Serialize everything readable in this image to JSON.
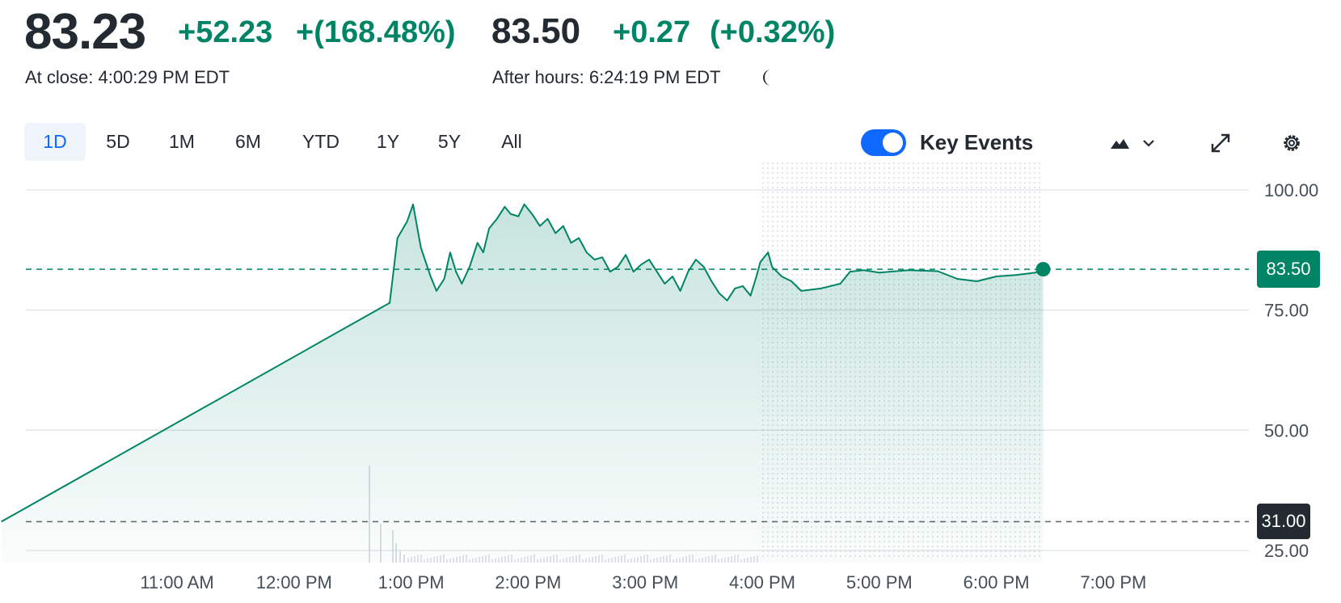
{
  "quote": {
    "price": "83.23",
    "change": "+52.23",
    "change_pct": "+(168.48%)",
    "close_label": "At close: 4:00:29 PM EDT",
    "ah_price": "83.50",
    "ah_change": "+0.27",
    "ah_change_pct": "(+0.32%)",
    "ah_label": "After hours: 6:24:19 PM EDT"
  },
  "ranges": [
    "1D",
    "5D",
    "1M",
    "6M",
    "YTD",
    "1Y",
    "5Y",
    "All"
  ],
  "active_range": "1D",
  "controls": {
    "key_events_label": "Key Events",
    "key_events_on": true,
    "icons": [
      "moon-icon",
      "mountain-chart-icon",
      "chevron-down-icon",
      "expand-icon",
      "gear-icon"
    ]
  },
  "colors": {
    "up": "#008466",
    "accent": "#0f69ff",
    "prev_close_tag": "#232a31"
  },
  "chart_data": {
    "type": "area",
    "xlabel": "",
    "ylabel": "",
    "x_ticks": [
      "11:00 AM",
      "12:00 PM",
      "1:00 PM",
      "2:00 PM",
      "3:00 PM",
      "4:00 PM",
      "5:00 PM",
      "6:00 PM",
      "7:00 PM"
    ],
    "y_ticks": [
      "25.00",
      "50.00",
      "75.00",
      "100.00"
    ],
    "ylim": [
      23,
      102
    ],
    "grid": true,
    "after_hours_start": "4:00 PM",
    "previous_close": {
      "value": 31.0,
      "label": "31.00"
    },
    "current": {
      "value": 83.5,
      "label": "83.50"
    },
    "series": [
      {
        "points": [
          [
            "9:30 AM",
            31.0
          ],
          [
            "12:49 PM",
            76.5
          ],
          [
            "12:53 PM",
            90.0
          ],
          [
            "12:58 PM",
            93.5
          ],
          [
            "1:01 PM",
            97.0
          ],
          [
            "1:05 PM",
            88.0
          ],
          [
            "1:10 PM",
            82.0
          ],
          [
            "1:13 PM",
            79.0
          ],
          [
            "1:17 PM",
            81.5
          ],
          [
            "1:20 PM",
            87.0
          ],
          [
            "1:23 PM",
            83.0
          ],
          [
            "1:26 PM",
            80.5
          ],
          [
            "1:30 PM",
            84.0
          ],
          [
            "1:34 PM",
            89.0
          ],
          [
            "1:37 PM",
            87.0
          ],
          [
            "1:40 PM",
            92.0
          ],
          [
            "1:44 PM",
            94.0
          ],
          [
            "1:48 PM",
            96.5
          ],
          [
            "1:51 PM",
            95.0
          ],
          [
            "1:55 PM",
            94.5
          ],
          [
            "1:58 PM",
            97.0
          ],
          [
            "2:02 PM",
            95.0
          ],
          [
            "2:06 PM",
            92.5
          ],
          [
            "2:10 PM",
            94.0
          ],
          [
            "2:14 PM",
            91.0
          ],
          [
            "2:18 PM",
            92.5
          ],
          [
            "2:22 PM",
            89.0
          ],
          [
            "2:26 PM",
            90.0
          ],
          [
            "2:30 PM",
            87.0
          ],
          [
            "2:34 PM",
            85.5
          ],
          [
            "2:38 PM",
            86.0
          ],
          [
            "2:42 PM",
            83.0
          ],
          [
            "2:46 PM",
            84.0
          ],
          [
            "2:50 PM",
            86.5
          ],
          [
            "2:54 PM",
            83.0
          ],
          [
            "2:58 PM",
            84.5
          ],
          [
            "3:02 PM",
            85.5
          ],
          [
            "3:06 PM",
            83.0
          ],
          [
            "3:10 PM",
            80.5
          ],
          [
            "3:14 PM",
            82.0
          ],
          [
            "3:18 PM",
            79.0
          ],
          [
            "3:22 PM",
            83.0
          ],
          [
            "3:26 PM",
            85.5
          ],
          [
            "3:30 PM",
            84.0
          ],
          [
            "3:34 PM",
            81.0
          ],
          [
            "3:38 PM",
            78.5
          ],
          [
            "3:42 PM",
            77.0
          ],
          [
            "3:46 PM",
            79.5
          ],
          [
            "3:50 PM",
            80.0
          ],
          [
            "3:54 PM",
            78.0
          ],
          [
            "3:57 PM",
            82.0
          ],
          [
            "3:59 PM",
            85.0
          ],
          [
            "4:03 PM",
            87.0
          ],
          [
            "4:05 PM",
            84.0
          ],
          [
            "4:10 PM",
            82.0
          ],
          [
            "4:15 PM",
            81.0
          ],
          [
            "4:20 PM",
            79.0
          ],
          [
            "4:30 PM",
            79.5
          ],
          [
            "4:40 PM",
            80.5
          ],
          [
            "4:45 PM",
            83.0
          ],
          [
            "4:52 PM",
            83.3
          ],
          [
            "5:00 PM",
            82.8
          ],
          [
            "5:15 PM",
            83.3
          ],
          [
            "5:30 PM",
            83.1
          ],
          [
            "5:40 PM",
            81.5
          ],
          [
            "5:50 PM",
            81.0
          ],
          [
            "6:00 PM",
            82.0
          ],
          [
            "6:10 PM",
            82.3
          ],
          [
            "6:20 PM",
            82.8
          ],
          [
            "6:24 PM",
            83.5
          ]
        ]
      }
    ]
  }
}
